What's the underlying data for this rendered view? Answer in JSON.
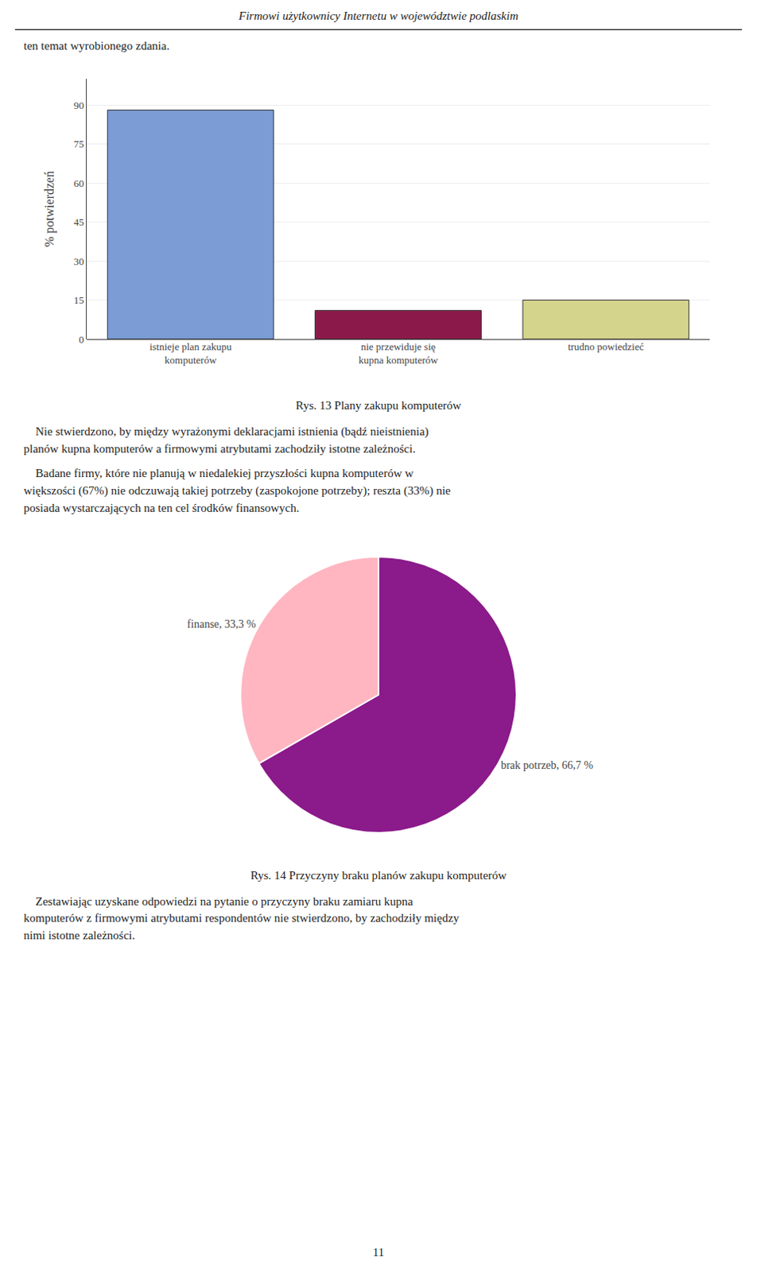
{
  "page_title": "Firmowi użytkownicy Internetu w województwie podlaskim",
  "intro_text": "ten temat wyrobionego zdania.",
  "text_after_bar": [
    "    Nie stwierdzono, by między wyrażonymi deklaracjami istnienia (bądź nieistnienia)\nplanów kupna komputerów a firmowymi atrybutami zachodziły istotne zależności.",
    "    Badane firmy, które nie planują w niedalekiej przyszłości kupna komputerów w\nwiększości (67%) nie odczuwają takiej potrzeby (zaspokojone potrzeby); reszta (33%) nie\nposiada wystarczających na ten cel środków finansowych."
  ],
  "text_after_pie": "    Zestawiając uzyskane odpowiedzi na pytanie o przyczyny braku zamiaru kupna\nkomputerów z firmowymi atrybutami respondentów nie stwierdzono, by zachodziły między\nnimi istotne zależności.",
  "page_number": "11",
  "chart_data": [
    {
      "type": "bar",
      "title": "Rys. 13 Plany zakupu komputerów",
      "categories": [
        "istnieje plan zakupu\nkomputerów",
        "nie przewiduje się\nkupna komputerów",
        "trudno powiedzieć"
      ],
      "values": [
        88,
        11,
        15
      ],
      "colors": [
        "#7B9CD4",
        "#8B1A4A",
        "#D4D48C"
      ],
      "ylabel": "% potwierdzeń",
      "ylim": [
        0,
        100
      ],
      "yticks": [
        0,
        15,
        30,
        45,
        60,
        75,
        90
      ],
      "grid": true
    },
    {
      "type": "pie",
      "title": "Rys. 14 Przyczyny braku planów zakupu komputerów",
      "values": [
        66.7,
        33.3
      ],
      "value_labels": [
        "brak potrzeb, 66,7 %",
        "finanse, 33,3 %"
      ],
      "colors": [
        "#8B1A8B",
        "#FFB6C1"
      ],
      "data_labels": true
    }
  ]
}
